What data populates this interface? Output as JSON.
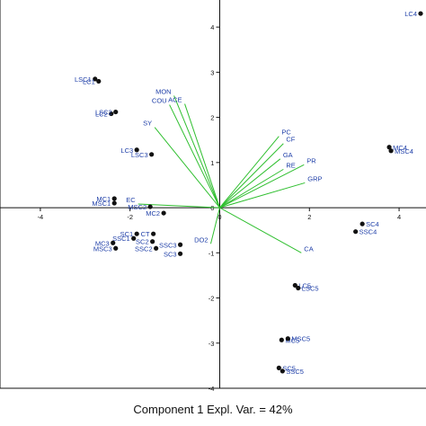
{
  "chart_data": {
    "type": "scatter",
    "title": "",
    "xlabel": "Component 1 Expl. Var. = 42%",
    "ylabel": "",
    "xlim": [
      -4.9,
      4.6
    ],
    "ylim": [
      -4.0,
      4.6
    ],
    "x_ticks": [
      -4,
      -2,
      0,
      2,
      4
    ],
    "y_ticks": [
      -4,
      -3,
      -2,
      -1,
      0,
      1,
      2,
      3,
      4
    ],
    "x_tick_labels": [
      "-4",
      "-2",
      "0",
      "2",
      "4"
    ],
    "y_tick_labels": [
      "-4",
      "-3",
      "-2",
      "-1",
      "0",
      "1",
      "2",
      "3",
      "4"
    ],
    "grid": false,
    "colors": {
      "points": "#111111",
      "point_labels": "#1f3fa8",
      "loading_lines": "#2fbf2f",
      "loading_labels": "#1f3fa8",
      "axes": "#111111"
    },
    "scores": [
      {
        "label": "LC4",
        "x": 4.48,
        "y": 4.3
      },
      {
        "label": "LSC1",
        "x": -2.78,
        "y": 2.85
      },
      {
        "label": "LC1",
        "x": -2.7,
        "y": 2.8
      },
      {
        "label": "LC2",
        "x": -2.42,
        "y": 2.08
      },
      {
        "label": "LSC2",
        "x": -2.32,
        "y": 2.12
      },
      {
        "label": "LC3",
        "x": -1.85,
        "y": 1.28
      },
      {
        "label": "LSC3",
        "x": -1.52,
        "y": 1.18
      },
      {
        "label": "MC4",
        "x": 3.78,
        "y": 1.34
      },
      {
        "label": "MSC4",
        "x": 3.82,
        "y": 1.26
      },
      {
        "label": "MC1",
        "x": -2.35,
        "y": 0.2
      },
      {
        "label": "MSC1",
        "x": -2.35,
        "y": 0.1
      },
      {
        "label": "MSC2",
        "x": -1.55,
        "y": 0.02
      },
      {
        "label": "MC2",
        "x": -1.25,
        "y": -0.12
      },
      {
        "label": "SC4",
        "x": 3.18,
        "y": -0.36
      },
      {
        "label": "SSC4",
        "x": 3.03,
        "y": -0.53
      },
      {
        "label": "SC1",
        "x": -1.85,
        "y": -0.58
      },
      {
        "label": "SSC1",
        "x": -1.92,
        "y": -0.68
      },
      {
        "label": "CT",
        "x": -1.48,
        "y": -0.58
      },
      {
        "label": "SC2",
        "x": -1.5,
        "y": -0.75
      },
      {
        "label": "SSC3",
        "x": -0.88,
        "y": -0.82
      },
      {
        "label": "MC3",
        "x": -2.38,
        "y": -0.78
      },
      {
        "label": "MSC3",
        "x": -2.32,
        "y": -0.9
      },
      {
        "label": "SSC2",
        "x": -1.42,
        "y": -0.9
      },
      {
        "label": "SC3",
        "x": -0.88,
        "y": -1.02
      },
      {
        "label": "LC5",
        "x": 1.68,
        "y": -1.72
      },
      {
        "label": "LSC5",
        "x": 1.75,
        "y": -1.78
      },
      {
        "label": "MC5",
        "x": 1.38,
        "y": -2.93
      },
      {
        "label": "MSC5",
        "x": 1.52,
        "y": -2.9
      },
      {
        "label": "SC5",
        "x": 1.32,
        "y": -3.55
      },
      {
        "label": "SSC5",
        "x": 1.4,
        "y": -3.62
      }
    ],
    "loadings": [
      {
        "label": "MON",
        "x": -1.02,
        "y": 2.48
      },
      {
        "label": "ACE",
        "x": -0.78,
        "y": 2.3
      },
      {
        "label": "COU",
        "x": -1.12,
        "y": 2.28
      },
      {
        "label": "SY",
        "x": -1.45,
        "y": 1.78
      },
      {
        "label": "PC",
        "x": 1.32,
        "y": 1.58
      },
      {
        "label": "CF",
        "x": 1.42,
        "y": 1.42
      },
      {
        "label": "GA",
        "x": 1.35,
        "y": 1.08
      },
      {
        "label": "RE",
        "x": 1.42,
        "y": 0.85
      },
      {
        "label": "PR",
        "x": 1.88,
        "y": 0.95
      },
      {
        "label": "GRP",
        "x": 1.9,
        "y": 0.55
      },
      {
        "label": "EC",
        "x": -1.82,
        "y": 0.08
      },
      {
        "label": "DO2",
        "x": -0.2,
        "y": -0.8
      },
      {
        "label": "CA",
        "x": 1.82,
        "y": -1.0
      }
    ]
  }
}
